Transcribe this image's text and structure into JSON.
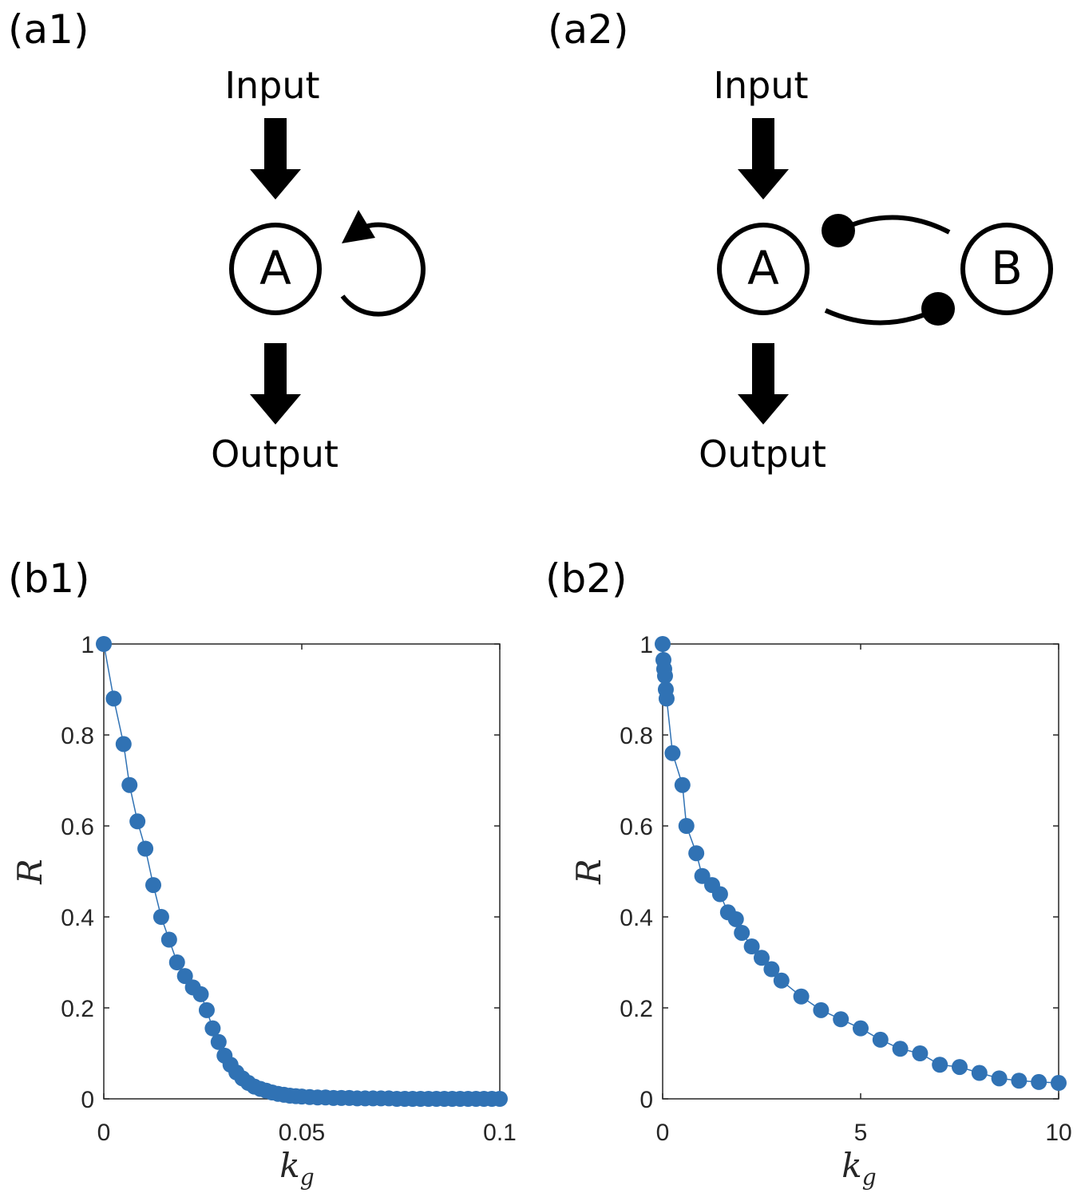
{
  "labels": {
    "a1": "(a1)",
    "a2": "(a2)",
    "b1": "(b1)",
    "b2": "(b2)"
  },
  "diagram_a1": {
    "input": "Input",
    "output": "Output",
    "node": "A"
  },
  "diagram_a2": {
    "input": "Input",
    "output": "Output",
    "node_a": "A",
    "node_b": "B"
  },
  "colors": {
    "series": "#3072B4",
    "axis": "#262626",
    "line": "#000000"
  },
  "chart_data": [
    {
      "type": "line",
      "markers": "filled-circle",
      "xlabel": "k",
      "xlabel_sub": "g",
      "ylabel": "R",
      "xlim": [
        0,
        0.1
      ],
      "ylim": [
        0,
        1
      ],
      "xticks": [
        "0",
        "0.05",
        "0.1"
      ],
      "xtick_values": [
        0,
        0.05,
        0.1
      ],
      "yticks": [
        "0",
        "0.2",
        "0.4",
        "0.6",
        "0.8",
        "1"
      ],
      "ytick_values": [
        0,
        0.2,
        0.4,
        0.6,
        0.8,
        1
      ],
      "x": [
        0,
        0.0025,
        0.005,
        0.0065,
        0.0085,
        0.0105,
        0.0125,
        0.0145,
        0.0165,
        0.0185,
        0.0205,
        0.0225,
        0.0245,
        0.026,
        0.0275,
        0.029,
        0.0305,
        0.032,
        0.0335,
        0.035,
        0.0365,
        0.038,
        0.0395,
        0.041,
        0.0425,
        0.044,
        0.0455,
        0.047,
        0.0485,
        0.05,
        0.052,
        0.054,
        0.056,
        0.058,
        0.06,
        0.062,
        0.064,
        0.066,
        0.068,
        0.07,
        0.072,
        0.074,
        0.076,
        0.078,
        0.08,
        0.082,
        0.084,
        0.086,
        0.088,
        0.09,
        0.092,
        0.094,
        0.096,
        0.098,
        0.1
      ],
      "y": [
        1.0,
        0.88,
        0.78,
        0.69,
        0.61,
        0.55,
        0.47,
        0.4,
        0.35,
        0.3,
        0.27,
        0.245,
        0.23,
        0.195,
        0.155,
        0.125,
        0.095,
        0.075,
        0.058,
        0.045,
        0.035,
        0.027,
        0.022,
        0.018,
        0.014,
        0.011,
        0.009,
        0.007,
        0.006,
        0.005,
        0.004,
        0.003,
        0.003,
        0.002,
        0.002,
        0.002,
        0.001,
        0.001,
        0.001,
        0.001,
        0.001,
        0.0,
        0.0,
        0.0,
        0.0,
        0.0,
        0.0,
        0.0,
        0.0,
        0.0,
        0.0,
        0.0,
        0.0,
        0.0,
        0.0
      ]
    },
    {
      "type": "line",
      "markers": "filled-circle",
      "xlabel": "k",
      "xlabel_sub": "g",
      "ylabel": "R",
      "xlim": [
        0,
        10
      ],
      "ylim": [
        0,
        1
      ],
      "xticks": [
        "0",
        "5",
        "10"
      ],
      "xtick_values": [
        0,
        5,
        10
      ],
      "yticks": [
        "0",
        "0.2",
        "0.4",
        "0.6",
        "0.8",
        "1"
      ],
      "ytick_values": [
        0,
        0.2,
        0.4,
        0.6,
        0.8,
        1
      ],
      "x": [
        0,
        0.02,
        0.04,
        0.06,
        0.08,
        0.1,
        0.25,
        0.5,
        0.6,
        0.85,
        1.0,
        1.25,
        1.45,
        1.65,
        1.85,
        2.0,
        2.25,
        2.5,
        2.75,
        3.0,
        3.5,
        4.0,
        4.5,
        5.0,
        5.5,
        6.0,
        6.5,
        7.0,
        7.5,
        8.0,
        8.5,
        9.0,
        9.5,
        10.0
      ],
      "y": [
        1.0,
        0.965,
        0.945,
        0.93,
        0.9,
        0.88,
        0.76,
        0.69,
        0.6,
        0.54,
        0.49,
        0.47,
        0.45,
        0.41,
        0.395,
        0.365,
        0.335,
        0.31,
        0.285,
        0.26,
        0.225,
        0.195,
        0.175,
        0.155,
        0.13,
        0.11,
        0.1,
        0.075,
        0.07,
        0.057,
        0.045,
        0.04,
        0.037,
        0.035
      ]
    }
  ]
}
